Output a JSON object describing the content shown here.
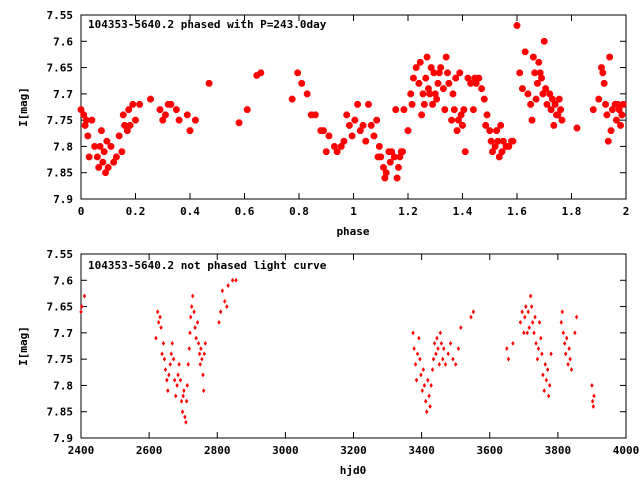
{
  "chart_data": [
    {
      "type": "scatter",
      "title": "104353-5640.2 phased with P=243.0day",
      "xlabel": "phase",
      "ylabel": "I[mag]",
      "xlim": [
        0,
        2
      ],
      "ylim": [
        7.9,
        7.55
      ],
      "y_inverted": true,
      "grid": false,
      "marker_color": "#ff0000",
      "marker": "star",
      "xticks": [
        "0",
        "0.2",
        "0.4",
        "0.6",
        "0.8",
        "1",
        "1.2",
        "1.4",
        "1.6",
        "1.8",
        "2"
      ],
      "yticks": [
        "7.55",
        "7.6",
        "7.65",
        "7.7",
        "7.75",
        "7.8",
        "7.85",
        "7.9"
      ],
      "points": [
        [
          0.0,
          7.73
        ],
        [
          0.01,
          7.74
        ],
        [
          0.015,
          7.76
        ],
        [
          0.02,
          7.75
        ],
        [
          0.025,
          7.78
        ],
        [
          0.03,
          7.82
        ],
        [
          0.04,
          7.75
        ],
        [
          0.05,
          7.8
        ],
        [
          0.06,
          7.82
        ],
        [
          0.065,
          7.84
        ],
        [
          0.07,
          7.8
        ],
        [
          0.075,
          7.77
        ],
        [
          0.08,
          7.83
        ],
        [
          0.085,
          7.81
        ],
        [
          0.09,
          7.85
        ],
        [
          0.095,
          7.79
        ],
        [
          0.1,
          7.84
        ],
        [
          0.11,
          7.8
        ],
        [
          0.12,
          7.83
        ],
        [
          0.13,
          7.82
        ],
        [
          0.14,
          7.78
        ],
        [
          0.15,
          7.81
        ],
        [
          0.155,
          7.74
        ],
        [
          0.16,
          7.76
        ],
        [
          0.17,
          7.77
        ],
        [
          0.175,
          7.73
        ],
        [
          0.18,
          7.76
        ],
        [
          0.19,
          7.72
        ],
        [
          0.2,
          7.75
        ],
        [
          0.215,
          7.72
        ],
        [
          0.255,
          7.71
        ],
        [
          0.29,
          7.73
        ],
        [
          0.3,
          7.75
        ],
        [
          0.31,
          7.74
        ],
        [
          0.32,
          7.72
        ],
        [
          0.33,
          7.72
        ],
        [
          0.35,
          7.73
        ],
        [
          0.36,
          7.75
        ],
        [
          0.39,
          7.74
        ],
        [
          0.4,
          7.77
        ],
        [
          0.42,
          7.75
        ],
        [
          0.47,
          7.68
        ],
        [
          0.58,
          7.755
        ],
        [
          0.61,
          7.73
        ],
        [
          0.645,
          7.665
        ],
        [
          0.66,
          7.66
        ],
        [
          0.775,
          7.71
        ],
        [
          0.795,
          7.66
        ],
        [
          0.81,
          7.68
        ],
        [
          0.83,
          7.7
        ],
        [
          0.845,
          7.74
        ],
        [
          0.86,
          7.74
        ],
        [
          0.88,
          7.77
        ],
        [
          0.89,
          7.77
        ],
        [
          0.9,
          7.81
        ],
        [
          0.91,
          7.78
        ],
        [
          0.93,
          7.8
        ],
        [
          0.94,
          7.81
        ],
        [
          0.955,
          7.8
        ],
        [
          0.965,
          7.79
        ],
        [
          0.975,
          7.74
        ],
        [
          0.985,
          7.76
        ],
        [
          0.995,
          7.78
        ],
        [
          1.005,
          7.75
        ],
        [
          1.015,
          7.72
        ],
        [
          1.025,
          7.77
        ],
        [
          1.035,
          7.76
        ],
        [
          1.045,
          7.79
        ],
        [
          1.055,
          7.72
        ],
        [
          1.065,
          7.76
        ],
        [
          1.075,
          7.78
        ],
        [
          1.085,
          7.75
        ],
        [
          1.09,
          7.82
        ],
        [
          1.095,
          7.8
        ],
        [
          1.1,
          7.82
        ],
        [
          1.11,
          7.84
        ],
        [
          1.115,
          7.86
        ],
        [
          1.12,
          7.85
        ],
        [
          1.13,
          7.81
        ],
        [
          1.135,
          7.83
        ],
        [
          1.14,
          7.81
        ],
        [
          1.15,
          7.82
        ],
        [
          1.155,
          7.73
        ],
        [
          1.16,
          7.86
        ],
        [
          1.165,
          7.84
        ],
        [
          1.17,
          7.82
        ],
        [
          1.175,
          7.81
        ],
        [
          1.18,
          7.81
        ],
        [
          1.185,
          7.73
        ],
        [
          1.2,
          7.77
        ],
        [
          1.21,
          7.7
        ],
        [
          1.215,
          7.72
        ],
        [
          1.22,
          7.67
        ],
        [
          1.23,
          7.65
        ],
        [
          1.24,
          7.68
        ],
        [
          1.245,
          7.64
        ],
        [
          1.25,
          7.74
        ],
        [
          1.255,
          7.7
        ],
        [
          1.26,
          7.72
        ],
        [
          1.265,
          7.67
        ],
        [
          1.27,
          7.63
        ],
        [
          1.275,
          7.69
        ],
        [
          1.28,
          7.7
        ],
        [
          1.285,
          7.65
        ],
        [
          1.29,
          7.72
        ],
        [
          1.295,
          7.66
        ],
        [
          1.3,
          7.7
        ],
        [
          1.305,
          7.71
        ],
        [
          1.31,
          7.68
        ],
        [
          1.315,
          7.66
        ],
        [
          1.32,
          7.65
        ],
        [
          1.33,
          7.69
        ],
        [
          1.335,
          7.73
        ],
        [
          1.34,
          7.63
        ],
        [
          1.345,
          7.66
        ],
        [
          1.35,
          7.68
        ],
        [
          1.36,
          7.75
        ],
        [
          1.365,
          7.7
        ],
        [
          1.37,
          7.73
        ],
        [
          1.375,
          7.67
        ],
        [
          1.38,
          7.77
        ],
        [
          1.385,
          7.75
        ],
        [
          1.39,
          7.66
        ],
        [
          1.395,
          7.74
        ],
        [
          1.4,
          7.76
        ],
        [
          1.405,
          7.73
        ],
        [
          1.41,
          7.81
        ],
        [
          1.42,
          7.67
        ],
        [
          1.43,
          7.68
        ],
        [
          1.44,
          7.73
        ],
        [
          1.445,
          7.67
        ],
        [
          1.45,
          7.68
        ],
        [
          1.46,
          7.67
        ],
        [
          1.47,
          7.69
        ],
        [
          1.48,
          7.71
        ],
        [
          1.485,
          7.76
        ],
        [
          1.49,
          7.74
        ],
        [
          1.5,
          7.77
        ],
        [
          1.505,
          7.79
        ],
        [
          1.51,
          7.81
        ],
        [
          1.52,
          7.8
        ],
        [
          1.525,
          7.77
        ],
        [
          1.53,
          7.79
        ],
        [
          1.535,
          7.82
        ],
        [
          1.54,
          7.76
        ],
        [
          1.545,
          7.81
        ],
        [
          1.55,
          7.79
        ],
        [
          1.56,
          7.8
        ],
        [
          1.57,
          7.8
        ],
        [
          1.58,
          7.79
        ],
        [
          1.585,
          7.79
        ],
        [
          1.6,
          7.57
        ],
        [
          1.61,
          7.66
        ],
        [
          1.62,
          7.69
        ],
        [
          1.63,
          7.62
        ],
        [
          1.64,
          7.7
        ],
        [
          1.65,
          7.72
        ],
        [
          1.655,
          7.75
        ],
        [
          1.66,
          7.63
        ],
        [
          1.665,
          7.66
        ],
        [
          1.67,
          7.71
        ],
        [
          1.675,
          7.68
        ],
        [
          1.68,
          7.64
        ],
        [
          1.685,
          7.66
        ],
        [
          1.69,
          7.67
        ],
        [
          1.695,
          7.7
        ],
        [
          1.7,
          7.6
        ],
        [
          1.705,
          7.69
        ],
        [
          1.71,
          7.72
        ],
        [
          1.72,
          7.7
        ],
        [
          1.725,
          7.73
        ],
        [
          1.73,
          7.71
        ],
        [
          1.735,
          7.76
        ],
        [
          1.74,
          7.72
        ],
        [
          1.745,
          7.74
        ],
        [
          1.75,
          7.74
        ],
        [
          1.755,
          7.71
        ],
        [
          1.76,
          7.73
        ],
        [
          1.765,
          7.75
        ],
        [
          1.82,
          7.765
        ],
        [
          1.88,
          7.73
        ],
        [
          1.9,
          7.71
        ],
        [
          1.91,
          7.65
        ],
        [
          1.915,
          7.66
        ],
        [
          1.92,
          7.68
        ],
        [
          1.925,
          7.72
        ],
        [
          1.93,
          7.74
        ],
        [
          1.935,
          7.79
        ],
        [
          1.94,
          7.63
        ],
        [
          1.945,
          7.77
        ],
        [
          1.95,
          7.73
        ],
        [
          1.96,
          7.72
        ],
        [
          1.965,
          7.75
        ],
        [
          1.97,
          7.72
        ],
        [
          1.975,
          7.73
        ],
        [
          1.98,
          7.76
        ],
        [
          1.985,
          7.74
        ],
        [
          1.99,
          7.72
        ]
      ]
    },
    {
      "type": "scatter",
      "title": "104353-5640.2 not phased light curve",
      "xlabel": "hjd0",
      "ylabel": "I[mag]",
      "xlim": [
        2400,
        4000
      ],
      "ylim": [
        7.9,
        7.55
      ],
      "y_inverted": true,
      "grid": false,
      "marker_color": "#ff0000",
      "marker": "diamond",
      "xticks": [
        "2400",
        "2600",
        "2800",
        "3000",
        "3200",
        "3400",
        "3600",
        "3800",
        "4000"
      ],
      "yticks": [
        "7.55",
        "7.6",
        "7.65",
        "7.7",
        "7.75",
        "7.8",
        "7.85",
        "7.9"
      ],
      "points": [
        [
          2400,
          7.66
        ],
        [
          2402,
          7.65
        ],
        [
          2410,
          7.63
        ],
        [
          2620,
          7.71
        ],
        [
          2625,
          7.66
        ],
        [
          2628,
          7.68
        ],
        [
          2632,
          7.67
        ],
        [
          2635,
          7.69
        ],
        [
          2638,
          7.74
        ],
        [
          2642,
          7.72
        ],
        [
          2645,
          7.75
        ],
        [
          2648,
          7.77
        ],
        [
          2652,
          7.79
        ],
        [
          2655,
          7.81
        ],
        [
          2658,
          7.78
        ],
        [
          2662,
          7.76
        ],
        [
          2665,
          7.74
        ],
        [
          2668,
          7.72
        ],
        [
          2672,
          7.75
        ],
        [
          2675,
          7.79
        ],
        [
          2678,
          7.82
        ],
        [
          2682,
          7.8
        ],
        [
          2685,
          7.78
        ],
        [
          2688,
          7.76
        ],
        [
          2692,
          7.79
        ],
        [
          2695,
          7.83
        ],
        [
          2698,
          7.85
        ],
        [
          2700,
          7.82
        ],
        [
          2702,
          7.81
        ],
        [
          2705,
          7.86
        ],
        [
          2708,
          7.87
        ],
        [
          2710,
          7.83
        ],
        [
          2712,
          7.8
        ],
        [
          2715,
          7.76
        ],
        [
          2718,
          7.73
        ],
        [
          2720,
          7.7
        ],
        [
          2722,
          7.67
        ],
        [
          2725,
          7.65
        ],
        [
          2728,
          7.63
        ],
        [
          2732,
          7.66
        ],
        [
          2735,
          7.69
        ],
        [
          2738,
          7.71
        ],
        [
          2742,
          7.68
        ],
        [
          2745,
          7.72
        ],
        [
          2748,
          7.74
        ],
        [
          2750,
          7.76
        ],
        [
          2752,
          7.73
        ],
        [
          2755,
          7.75
        ],
        [
          2758,
          7.78
        ],
        [
          2760,
          7.81
        ],
        [
          2762,
          7.74
        ],
        [
          2765,
          7.72
        ],
        [
          2805,
          7.68
        ],
        [
          2810,
          7.66
        ],
        [
          2815,
          7.62
        ],
        [
          2822,
          7.64
        ],
        [
          2828,
          7.65
        ],
        [
          2832,
          7.61
        ],
        [
          2845,
          7.6
        ],
        [
          2855,
          7.6
        ],
        [
          3375,
          7.7
        ],
        [
          3378,
          7.73
        ],
        [
          3382,
          7.76
        ],
        [
          3385,
          7.79
        ],
        [
          3388,
          7.74
        ],
        [
          3392,
          7.71
        ],
        [
          3395,
          7.75
        ],
        [
          3398,
          7.78
        ],
        [
          3402,
          7.81
        ],
        [
          3405,
          7.77
        ],
        [
          3408,
          7.8
        ],
        [
          3412,
          7.83
        ],
        [
          3415,
          7.85
        ],
        [
          3418,
          7.79
        ],
        [
          3422,
          7.82
        ],
        [
          3425,
          7.84
        ],
        [
          3428,
          7.8
        ],
        [
          3432,
          7.77
        ],
        [
          3435,
          7.75
        ],
        [
          3438,
          7.72
        ],
        [
          3442,
          7.74
        ],
        [
          3445,
          7.71
        ],
        [
          3448,
          7.73
        ],
        [
          3452,
          7.76
        ],
        [
          3455,
          7.7
        ],
        [
          3458,
          7.72
        ],
        [
          3462,
          7.75
        ],
        [
          3465,
          7.73
        ],
        [
          3470,
          7.76
        ],
        [
          3478,
          7.74
        ],
        [
          3485,
          7.72
        ],
        [
          3492,
          7.75
        ],
        [
          3500,
          7.76
        ],
        [
          3508,
          7.73
        ],
        [
          3515,
          7.69
        ],
        [
          3545,
          7.67
        ],
        [
          3552,
          7.66
        ],
        [
          3650,
          7.73
        ],
        [
          3655,
          7.75
        ],
        [
          3668,
          7.72
        ],
        [
          3690,
          7.68
        ],
        [
          3695,
          7.66
        ],
        [
          3700,
          7.7
        ],
        [
          3703,
          7.67
        ],
        [
          3706,
          7.65
        ],
        [
          3710,
          7.7
        ],
        [
          3713,
          7.66
        ],
        [
          3716,
          7.69
        ],
        [
          3720,
          7.63
        ],
        [
          3723,
          7.65
        ],
        [
          3726,
          7.68
        ],
        [
          3730,
          7.7
        ],
        [
          3733,
          7.67
        ],
        [
          3736,
          7.72
        ],
        [
          3740,
          7.75
        ],
        [
          3743,
          7.73
        ],
        [
          3746,
          7.68
        ],
        [
          3750,
          7.71
        ],
        [
          3753,
          7.74
        ],
        [
          3756,
          7.78
        ],
        [
          3760,
          7.81
        ],
        [
          3763,
          7.76
        ],
        [
          3766,
          7.79
        ],
        [
          3770,
          7.77
        ],
        [
          3773,
          7.82
        ],
        [
          3776,
          7.8
        ],
        [
          3780,
          7.74
        ],
        [
          3810,
          7.68
        ],
        [
          3813,
          7.66
        ],
        [
          3816,
          7.7
        ],
        [
          3820,
          7.72
        ],
        [
          3823,
          7.74
        ],
        [
          3826,
          7.71
        ],
        [
          3830,
          7.76
        ],
        [
          3833,
          7.73
        ],
        [
          3836,
          7.75
        ],
        [
          3840,
          7.77
        ],
        [
          3850,
          7.7
        ],
        [
          3855,
          7.67
        ],
        [
          3900,
          7.8
        ],
        [
          3902,
          7.83
        ],
        [
          3904,
          7.84
        ],
        [
          3906,
          7.82
        ]
      ]
    }
  ]
}
